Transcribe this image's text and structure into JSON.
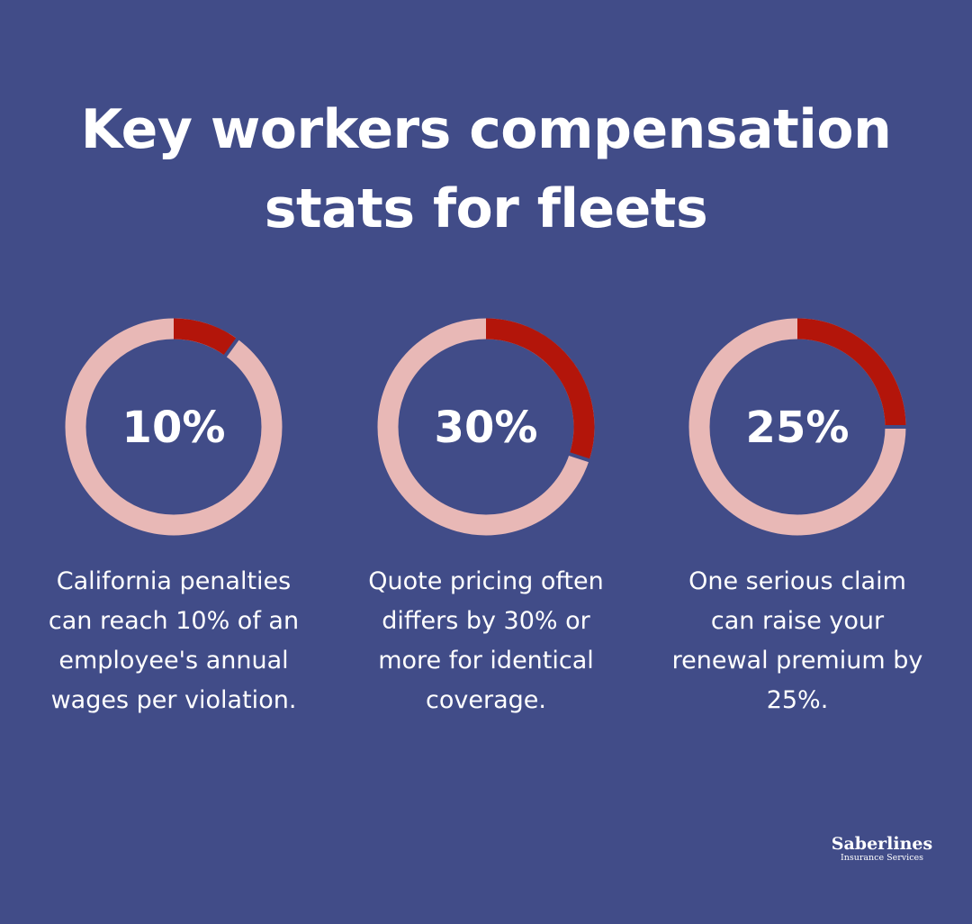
{
  "title": {
    "line1": "Key workers compensation",
    "line2": "stats for fleets"
  },
  "colors": {
    "background": "#414c88",
    "ring_track": "#e8b8b6",
    "ring_fill": "#b3150a",
    "text": "#ffffff"
  },
  "chart_data": [
    {
      "type": "pie",
      "value_label": "10%",
      "value": 10,
      "description": [
        "California penalties",
        "can reach 10% of an",
        "employee's annual",
        "wages per violation."
      ]
    },
    {
      "type": "pie",
      "value_label": "30%",
      "value": 30,
      "description": [
        "Quote pricing often",
        "differs by 30% or",
        "more for identical",
        "coverage."
      ]
    },
    {
      "type": "pie",
      "value_label": "25%",
      "value": 25,
      "description": [
        "One serious claim",
        "can raise your",
        "renewal premium by",
        "25%."
      ]
    }
  ],
  "brand": {
    "name": "Saberlines",
    "tagline": "Insurance Services"
  }
}
